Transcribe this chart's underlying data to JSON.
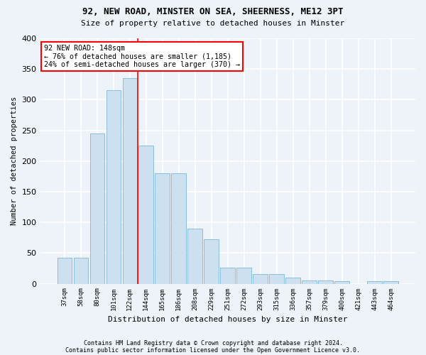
{
  "title1": "92, NEW ROAD, MINSTER ON SEA, SHEERNESS, ME12 3PT",
  "title2": "Size of property relative to detached houses in Minster",
  "xlabel": "Distribution of detached houses by size in Minster",
  "ylabel": "Number of detached properties",
  "categories": [
    "37sqm",
    "58sqm",
    "80sqm",
    "101sqm",
    "122sqm",
    "144sqm",
    "165sqm",
    "186sqm",
    "208sqm",
    "229sqm",
    "251sqm",
    "272sqm",
    "293sqm",
    "315sqm",
    "336sqm",
    "357sqm",
    "379sqm",
    "400sqm",
    "421sqm",
    "443sqm",
    "464sqm"
  ],
  "values": [
    42,
    42,
    245,
    315,
    335,
    225,
    180,
    180,
    90,
    72,
    26,
    26,
    16,
    16,
    10,
    5,
    5,
    4,
    0,
    4,
    4
  ],
  "bar_color": "#cce0f0",
  "bar_edge_color": "#7ab8dc",
  "annotation_text": "92 NEW ROAD: 148sqm\n← 76% of detached houses are smaller (1,185)\n24% of semi-detached houses are larger (370) →",
  "annotation_box_color": "white",
  "annotation_box_edge": "red",
  "vline_color": "red",
  "vline_x_index": 5,
  "footer1": "Contains HM Land Registry data © Crown copyright and database right 2024.",
  "footer2": "Contains public sector information licensed under the Open Government Licence v3.0.",
  "background_color": "#eef2f9",
  "grid_color": "white",
  "ylim": [
    0,
    400
  ],
  "yticks": [
    0,
    50,
    100,
    150,
    200,
    250,
    300,
    350,
    400
  ]
}
